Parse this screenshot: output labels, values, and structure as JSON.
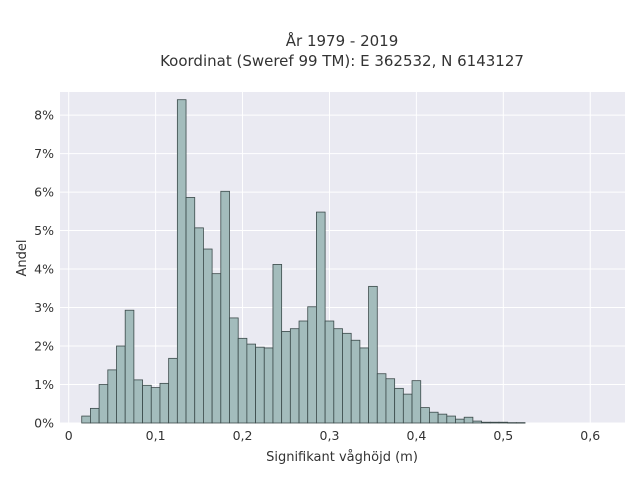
{
  "colors": {
    "plot_background": "#eaeaf2",
    "grid": "#ffffff",
    "bar_fill": "#a3bcbc",
    "bar_stroke": "#3b4a4a",
    "text": "#333333"
  },
  "chart_data": {
    "type": "bar",
    "title": "År 1979 - 2019",
    "subtitle": "Koordinat (Sweref 99 TM): E 362532, N 6143127",
    "xlabel": "Signifikant våghöjd (m)",
    "ylabel": "Andel",
    "xlim": [
      -0.01,
      0.64
    ],
    "ylim": [
      0,
      8.6
    ],
    "bin_width": 0.01,
    "grid": true,
    "x": [
      0.02,
      0.03,
      0.04,
      0.05,
      0.06,
      0.07,
      0.08,
      0.09,
      0.1,
      0.11,
      0.12,
      0.13,
      0.14,
      0.15,
      0.16,
      0.17,
      0.18,
      0.19,
      0.2,
      0.21,
      0.22,
      0.23,
      0.24,
      0.25,
      0.26,
      0.27,
      0.28,
      0.29,
      0.3,
      0.31,
      0.32,
      0.33,
      0.34,
      0.35,
      0.36,
      0.37,
      0.38,
      0.39,
      0.4,
      0.41,
      0.42,
      0.43,
      0.44,
      0.45,
      0.46,
      0.47,
      0.48,
      0.49,
      0.5,
      0.51,
      0.52,
      0.53,
      0.54,
      0.55,
      0.56,
      0.57,
      0.58,
      0.59,
      0.6
    ],
    "values": [
      0.18,
      0.38,
      1.0,
      1.38,
      2.0,
      2.93,
      1.12,
      0.98,
      0.92,
      1.03,
      1.68,
      8.4,
      5.86,
      5.07,
      4.52,
      3.88,
      6.02,
      2.73,
      2.2,
      2.05,
      1.97,
      1.95,
      4.12,
      2.38,
      2.45,
      2.65,
      3.02,
      5.48,
      2.65,
      2.45,
      2.33,
      2.15,
      1.95,
      3.55,
      1.28,
      1.15,
      0.9,
      0.75,
      1.1,
      0.4,
      0.28,
      0.23,
      0.18,
      0.1,
      0.15,
      0.05,
      0.02,
      0.02,
      0.02,
      0.01,
      0.01,
      0.0,
      0.0,
      0.0,
      0.0,
      0.0,
      0.0,
      0.0,
      0.0
    ],
    "x_ticks": [
      0,
      0.1,
      0.2,
      0.3,
      0.4,
      0.5,
      0.6
    ],
    "x_tick_labels": [
      "0",
      "0,1",
      "0,2",
      "0,3",
      "0,4",
      "0,5",
      "0,6"
    ],
    "y_ticks": [
      0,
      1,
      2,
      3,
      4,
      5,
      6,
      7,
      8
    ],
    "y_tick_labels": [
      "0%",
      "1%",
      "2%",
      "3%",
      "4%",
      "5%",
      "6%",
      "7%",
      "8%"
    ]
  }
}
